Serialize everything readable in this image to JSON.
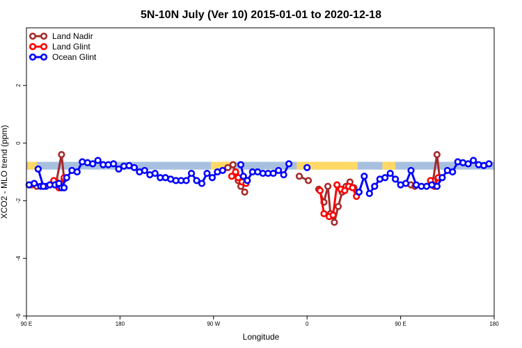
{
  "chart_data": {
    "type": "line",
    "title": "5N-10N July (Ver 10)   2015-01-01 to 2020-12-18",
    "xlabel": "Longitude",
    "ylabel": "XCO2 - MLO trend (ppm)",
    "xlim": [
      0,
      360
    ],
    "ylim": [
      -6,
      4
    ],
    "x_ticks": [
      {
        "value": 0,
        "label": "90 E"
      },
      {
        "value": 72,
        "label": "180"
      },
      {
        "value": 144,
        "label": "90 W"
      },
      {
        "value": 216,
        "label": "0"
      },
      {
        "value": 288,
        "label": "90 E"
      },
      {
        "value": 360,
        "label": "180"
      }
    ],
    "y_ticks": [
      {
        "value": -6,
        "label": "-6"
      },
      {
        "value": -4,
        "label": "-4"
      },
      {
        "value": -2,
        "label": "-2"
      },
      {
        "value": 0,
        "label": "0"
      },
      {
        "value": 2,
        "label": "2"
      }
    ],
    "band": {
      "y_range": [
        -0.92,
        -0.65
      ],
      "ocean_color": "#a8c0e0",
      "land_color": "#ffd866",
      "land_spans": [
        [
          1,
          8
        ],
        [
          142,
          157
        ],
        [
          208,
          255
        ],
        [
          274,
          284
        ]
      ]
    },
    "legend": {
      "position": "top-left",
      "entries": [
        {
          "name": "Land Nadir",
          "color": "#a52a2a"
        },
        {
          "name": "Land Glint",
          "color": "#ff0000"
        },
        {
          "name": "Ocean Glint",
          "color": "#0000ff"
        }
      ]
    },
    "series": [
      {
        "name": "Land Nadir",
        "color": "#a52a2a",
        "segments": [
          [
            [
              4,
              -1.45
            ],
            [
              8,
              -1.5
            ]
          ],
          [
            [
              23,
              -1.35
            ],
            [
              27,
              -0.4
            ],
            [
              29,
              -1.25
            ]
          ],
          [
            [
              155,
              -0.85
            ],
            [
              159,
              -0.75
            ],
            [
              161,
              -1.05
            ],
            [
              163,
              -1.3
            ],
            [
              165,
              -1.5
            ],
            [
              168,
              -1.7
            ]
          ],
          [
            [
              210,
              -1.15
            ],
            [
              217,
              -1.3
            ]
          ],
          [
            [
              225,
              -1.6
            ],
            [
              229,
              -2.05
            ],
            [
              232,
              -1.5
            ],
            [
              234,
              -2.45
            ],
            [
              237,
              -2.75
            ],
            [
              240,
              -2.2
            ],
            [
              243,
              -1.7
            ],
            [
              246,
              -1.5
            ],
            [
              249,
              -1.35
            ],
            [
              252,
              -1.55
            ]
          ],
          [
            [
              296,
              -1.45
            ],
            [
              299,
              -1.5
            ]
          ],
          [
            [
              313,
              -1.3
            ],
            [
              316,
              -0.4
            ],
            [
              318,
              -1.2
            ]
          ]
        ]
      },
      {
        "name": "Land Glint",
        "color": "#ff0000",
        "segments": [
          [
            [
              21,
              -1.3
            ],
            [
              25,
              -1.55
            ],
            [
              29,
              -1.2
            ]
          ],
          [
            [
              158,
              -1.15
            ],
            [
              161,
              -1.0
            ],
            [
              163,
              -1.2
            ],
            [
              166,
              -1.35
            ],
            [
              169,
              -1.4
            ]
          ],
          [
            [
              226,
              -1.65
            ],
            [
              229,
              -2.45
            ],
            [
              233,
              -2.55
            ],
            [
              236,
              -2.5
            ],
            [
              239,
              -1.45
            ],
            [
              242,
              -1.6
            ],
            [
              245,
              -1.65
            ],
            [
              248,
              -1.5
            ],
            [
              251,
              -1.55
            ],
            [
              254,
              -1.85
            ]
          ],
          [
            [
              311,
              -1.3
            ],
            [
              314,
              -1.5
            ],
            [
              317,
              -1.2
            ]
          ]
        ]
      },
      {
        "name": "Ocean Glint",
        "color": "#0000ff",
        "segments": [
          [
            [
              2,
              -1.45
            ],
            [
              6,
              -1.4
            ],
            [
              11,
              -1.5
            ],
            [
              15,
              -1.5
            ],
            [
              18,
              -1.45
            ],
            [
              22,
              -1.45
            ],
            [
              25,
              -1.45
            ],
            [
              27,
              -1.55
            ],
            [
              31,
              -1.2
            ],
            [
              35,
              -0.95
            ],
            [
              39,
              -1.0
            ],
            [
              43,
              -0.65
            ],
            [
              47,
              -0.68
            ],
            [
              51,
              -0.72
            ],
            [
              55,
              -0.6
            ],
            [
              59,
              -0.75
            ],
            [
              63,
              -0.75
            ],
            [
              67,
              -0.72
            ],
            [
              71,
              -0.9
            ],
            [
              75,
              -0.8
            ],
            [
              79,
              -0.78
            ],
            [
              83,
              -0.85
            ],
            [
              87,
              -1.0
            ],
            [
              91,
              -0.95
            ],
            [
              95,
              -1.1
            ],
            [
              99,
              -1.05
            ],
            [
              103,
              -1.2
            ],
            [
              107,
              -1.2
            ],
            [
              111,
              -1.25
            ],
            [
              115,
              -1.3
            ],
            [
              119,
              -1.3
            ],
            [
              123,
              -1.3
            ],
            [
              127,
              -1.05
            ],
            [
              131,
              -1.3
            ],
            [
              135,
              -1.4
            ],
            [
              139,
              -1.05
            ],
            [
              143,
              -1.2
            ],
            [
              147,
              -1.0
            ],
            [
              151,
              -0.95
            ]
          ],
          [
            [
              9,
              -0.9
            ],
            [
              13,
              -1.5
            ]
          ],
          [
            [
              25,
              -1.4
            ],
            [
              29,
              -1.55
            ]
          ],
          [
            [
              165,
              -0.75
            ],
            [
              167,
              -1.15
            ],
            [
              170,
              -1.3
            ],
            [
              174,
              -1.0
            ],
            [
              178,
              -1.0
            ],
            [
              182,
              -1.05
            ],
            [
              186,
              -1.05
            ],
            [
              190,
              -1.05
            ],
            [
              194,
              -0.95
            ],
            [
              198,
              -1.1
            ],
            [
              202,
              -0.72
            ]
          ],
          [
            [
              216,
              -0.85
            ]
          ],
          [
            [
              256,
              -1.7
            ],
            [
              260,
              -1.15
            ],
            [
              264,
              -1.75
            ],
            [
              268,
              -1.5
            ],
            [
              272,
              -1.25
            ],
            [
              276,
              -1.2
            ],
            [
              280,
              -1.05
            ],
            [
              284,
              -1.25
            ],
            [
              288,
              -1.45
            ],
            [
              292,
              -1.4
            ],
            [
              296,
              -0.95
            ],
            [
              300,
              -1.45
            ],
            [
              304,
              -1.5
            ],
            [
              308,
              -1.5
            ],
            [
              312,
              -1.45
            ],
            [
              316,
              -1.5
            ],
            [
              320,
              -1.2
            ],
            [
              324,
              -0.95
            ],
            [
              328,
              -1.0
            ],
            [
              332,
              -0.65
            ],
            [
              336,
              -0.68
            ],
            [
              340,
              -0.72
            ],
            [
              344,
              -0.6
            ],
            [
              348,
              -0.75
            ],
            [
              352,
              -0.78
            ],
            [
              356,
              -0.72
            ]
          ]
        ]
      }
    ]
  }
}
